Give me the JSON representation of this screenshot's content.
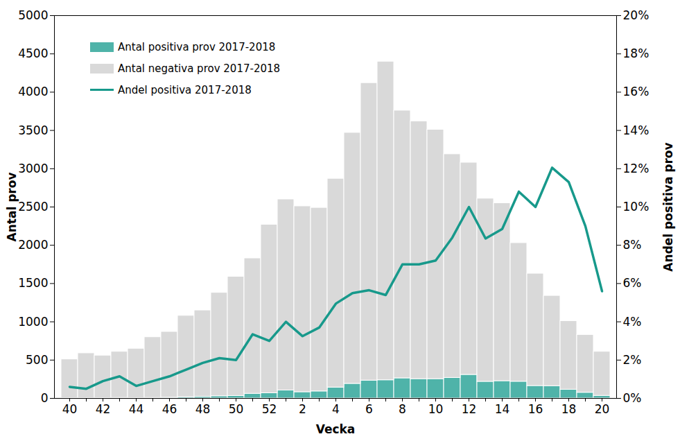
{
  "chart_data": {
    "type": "bar",
    "stacked": true,
    "legend": "top-left",
    "grid": false,
    "xlabel": "Vecka",
    "ylabel": "Antal prov",
    "y2label": "Andel positiva prov",
    "categories": [
      "40",
      null,
      "42",
      null,
      "44",
      null,
      "46",
      null,
      "48",
      null,
      "50",
      null,
      "52",
      null,
      "2",
      null,
      "4",
      null,
      "6",
      null,
      "8",
      null,
      "10",
      null,
      "12",
      null,
      "14",
      null,
      "16",
      null,
      "18",
      null,
      "20"
    ],
    "ylim": [
      0,
      5000
    ],
    "yticks": [
      0,
      500,
      1000,
      1500,
      2000,
      2500,
      3000,
      3500,
      4000,
      4500,
      5000
    ],
    "y2lim": [
      0,
      20
    ],
    "y2ticks": [
      {
        "value": 0,
        "label": "0%"
      },
      {
        "value": 2,
        "label": "2%"
      },
      {
        "value": 4,
        "label": "4%"
      },
      {
        "value": 6,
        "label": "6%"
      },
      {
        "value": 8,
        "label": "8%"
      },
      {
        "value": 10,
        "label": "10%"
      },
      {
        "value": 12,
        "label": "12%"
      },
      {
        "value": 14,
        "label": "14%"
      },
      {
        "value": 16,
        "label": "16%"
      },
      {
        "value": 18,
        "label": "18%"
      },
      {
        "value": 20,
        "label": "20%"
      }
    ],
    "series": [
      {
        "name": "Antal positiva prov 2017-2018",
        "type": "bar",
        "color": "#4fb3a9",
        "values": [
          3,
          3,
          5,
          7,
          4,
          7,
          10,
          16,
          21,
          29,
          32,
          61,
          68,
          104,
          82,
          92,
          142,
          191,
          233,
          238,
          263,
          253,
          253,
          268,
          308,
          218,
          226,
          219,
          163,
          161,
          114,
          75,
          34
        ]
      },
      {
        "name": "Antal negativa prov 2017-2018",
        "type": "bar",
        "color": "#d9d9d9",
        "values": [
          507,
          587,
          555,
          603,
          646,
          793,
          860,
          1064,
          1129,
          1351,
          1558,
          1769,
          2202,
          2496,
          2428,
          2398,
          2728,
          3279,
          3887,
          4162,
          3497,
          3367,
          3257,
          2922,
          2772,
          2392,
          2324,
          1811,
          1467,
          1179,
          896,
          755,
          576
        ]
      },
      {
        "name": "Andel positiva 2017-2018",
        "type": "line",
        "axis": "y2",
        "color": "#17998b",
        "values": [
          0.6,
          0.5,
          0.9,
          1.15,
          0.65,
          0.9,
          1.15,
          1.5,
          1.85,
          2.1,
          2.0,
          3.35,
          3.0,
          4.0,
          3.25,
          3.7,
          4.95,
          5.5,
          5.65,
          5.4,
          7.0,
          7.0,
          7.2,
          8.4,
          10.0,
          8.35,
          8.85,
          10.8,
          10.0,
          12.05,
          11.3,
          9.0,
          5.6
        ]
      }
    ]
  }
}
